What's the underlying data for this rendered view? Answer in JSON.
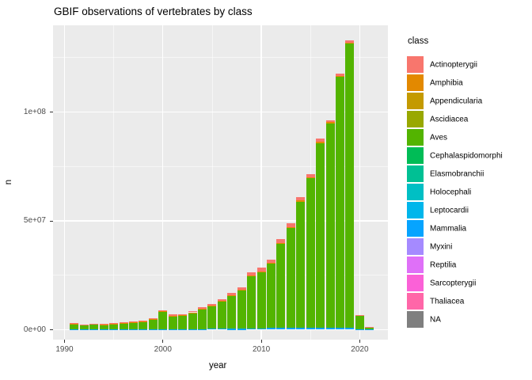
{
  "title": "GBIF observations of vertebrates by class",
  "axes": {
    "x": {
      "title": "year",
      "major_ticks": [
        1990,
        2000,
        2010,
        2020
      ],
      "minor_ticks": [
        1995,
        2005,
        2015
      ],
      "range_years": [
        1988.8,
        2022.9
      ]
    },
    "y": {
      "title": "n",
      "major_ticks": [
        {
          "value_millions": 0,
          "label": "0e+00"
        },
        {
          "value_millions": 50,
          "label": "5e+07"
        },
        {
          "value_millions": 100,
          "label": "1e+08"
        }
      ],
      "minor_ticks_millions": [
        25,
        75,
        125
      ]
    }
  },
  "legend": {
    "title": "class",
    "items": [
      {
        "label": "Actinopterygii",
        "color": "#F8766D"
      },
      {
        "label": "Amphibia",
        "color": "#E38900"
      },
      {
        "label": "Appendicularia",
        "color": "#C49A00"
      },
      {
        "label": "Ascidiacea",
        "color": "#99A800"
      },
      {
        "label": "Aves",
        "color": "#53B400"
      },
      {
        "label": "Cephalaspidomorphi",
        "color": "#00BC56"
      },
      {
        "label": "Elasmobranchii",
        "color": "#00C094"
      },
      {
        "label": "Holocephali",
        "color": "#00BFC4"
      },
      {
        "label": "Leptocardii",
        "color": "#00B6EB"
      },
      {
        "label": "Mammalia",
        "color": "#06A4FF"
      },
      {
        "label": "Myxini",
        "color": "#A58AFF"
      },
      {
        "label": "Reptilia",
        "color": "#DF70F8"
      },
      {
        "label": "Sarcopterygii",
        "color": "#FB61D7"
      },
      {
        "label": "Thaliacea",
        "color": "#FF66A8"
      },
      {
        "label": "NA",
        "color": "#7F7F7F"
      }
    ]
  },
  "chart_data": {
    "type": "bar",
    "stacked": true,
    "title": "GBIF observations of vertebrates by class",
    "xlabel": "year",
    "ylabel": "n",
    "unit": "observations, values in millions (estimated from pixels)",
    "ylim_millions": [
      0,
      140
    ],
    "legend_position": "right",
    "grid": true,
    "note": "Stacked bars dominated by Aves (green); thin Actinopterygii cap on top, thin Amphibia strip under it, thin Mammalia strip at base. Other 11 classes are too small to be visible.",
    "years": [
      1991,
      1992,
      1993,
      1994,
      1995,
      1996,
      1997,
      1998,
      1999,
      2000,
      2001,
      2002,
      2003,
      2004,
      2005,
      2006,
      2007,
      2008,
      2009,
      2010,
      2011,
      2012,
      2013,
      2014,
      2015,
      2016,
      2017,
      2018,
      2019,
      2020,
      2021
    ],
    "totals_millions": [
      3.0,
      2.5,
      2.9,
      2.7,
      3.1,
      3.3,
      3.8,
      4.2,
      5.3,
      9.0,
      7.0,
      7.2,
      8.6,
      10.2,
      12.0,
      14.0,
      17.0,
      19.5,
      26.2,
      28.5,
      32.3,
      41.5,
      49.0,
      61.0,
      71.5,
      87.8,
      96.3,
      117.5,
      133.0,
      6.8,
      1.3
    ],
    "series": [
      {
        "name": "Mammalia",
        "color": "#06A4FF",
        "values_millions": [
          0.1,
          0.1,
          0.1,
          0.1,
          0.1,
          0.1,
          0.15,
          0.15,
          0.2,
          0.3,
          0.3,
          0.3,
          0.3,
          0.35,
          0.4,
          0.4,
          0.5,
          0.5,
          0.7,
          0.7,
          0.8,
          0.8,
          0.9,
          0.9,
          0.9,
          0.9,
          0.9,
          0.9,
          0.9,
          0.3,
          0.08
        ]
      },
      {
        "name": "Aves",
        "color": "#53B400",
        "values_millions": [
          2.5,
          2.05,
          2.45,
          2.25,
          2.6,
          2.8,
          3.2,
          3.6,
          4.55,
          8.0,
          6.1,
          6.3,
          7.6,
          9.05,
          10.7,
          12.6,
          15.35,
          17.75,
          23.9,
          25.8,
          29.8,
          38.75,
          46.0,
          58.0,
          68.6,
          84.8,
          94.0,
          115.3,
          130.6,
          6.25,
          1.15
        ]
      },
      {
        "name": "Amphibia",
        "color": "#E38900",
        "values_millions": [
          0.05,
          0.05,
          0.05,
          0.05,
          0.05,
          0.05,
          0.05,
          0.05,
          0.05,
          0.1,
          0.1,
          0.1,
          0.1,
          0.1,
          0.1,
          0.1,
          0.15,
          0.15,
          0.2,
          0.2,
          0.2,
          0.25,
          0.3,
          0.4,
          0.4,
          0.5,
          0.4,
          0.4,
          0.4,
          0.05,
          0.02
        ]
      },
      {
        "name": "Actinopterygii",
        "color": "#F8766D",
        "values_millions": [
          0.35,
          0.3,
          0.3,
          0.3,
          0.35,
          0.35,
          0.4,
          0.4,
          0.5,
          0.6,
          0.5,
          0.5,
          0.6,
          0.7,
          0.8,
          0.9,
          1.0,
          1.1,
          1.4,
          1.8,
          1.5,
          1.7,
          1.8,
          1.7,
          1.6,
          1.6,
          1.0,
          0.9,
          1.1,
          0.2,
          0.05
        ]
      }
    ]
  },
  "theme": {
    "panel_background": "#EBEBEB",
    "gridline_color": "#FFFFFF",
    "axis_text_color": "#4D4D4D",
    "tick_mark_color": "#333333",
    "background": "#FFFFFF"
  }
}
